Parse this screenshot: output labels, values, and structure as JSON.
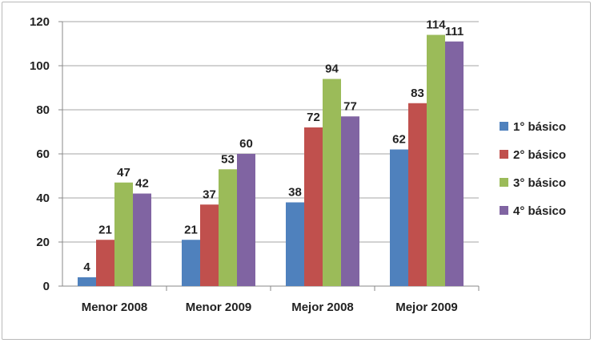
{
  "chart_data": {
    "type": "bar",
    "title": "",
    "xlabel": "",
    "ylabel": "",
    "categories": [
      "Menor 2008",
      "Menor 2009",
      "Mejor 2008",
      "Mejor 2009"
    ],
    "series": [
      {
        "name": "1° básico",
        "color": "#4f81bd",
        "values": [
          4,
          21,
          38,
          62
        ]
      },
      {
        "name": "2° básico",
        "color": "#c0504d",
        "values": [
          21,
          37,
          72,
          83
        ]
      },
      {
        "name": "3° básico",
        "color": "#9bbb59",
        "values": [
          47,
          53,
          94,
          114
        ]
      },
      {
        "name": "4° básico",
        "color": "#8064a2",
        "values": [
          42,
          60,
          77,
          111
        ]
      }
    ],
    "ylim": [
      0,
      120
    ],
    "yticks": [
      0,
      20,
      40,
      60,
      80,
      100,
      120
    ],
    "grid": true,
    "legend": "right"
  }
}
